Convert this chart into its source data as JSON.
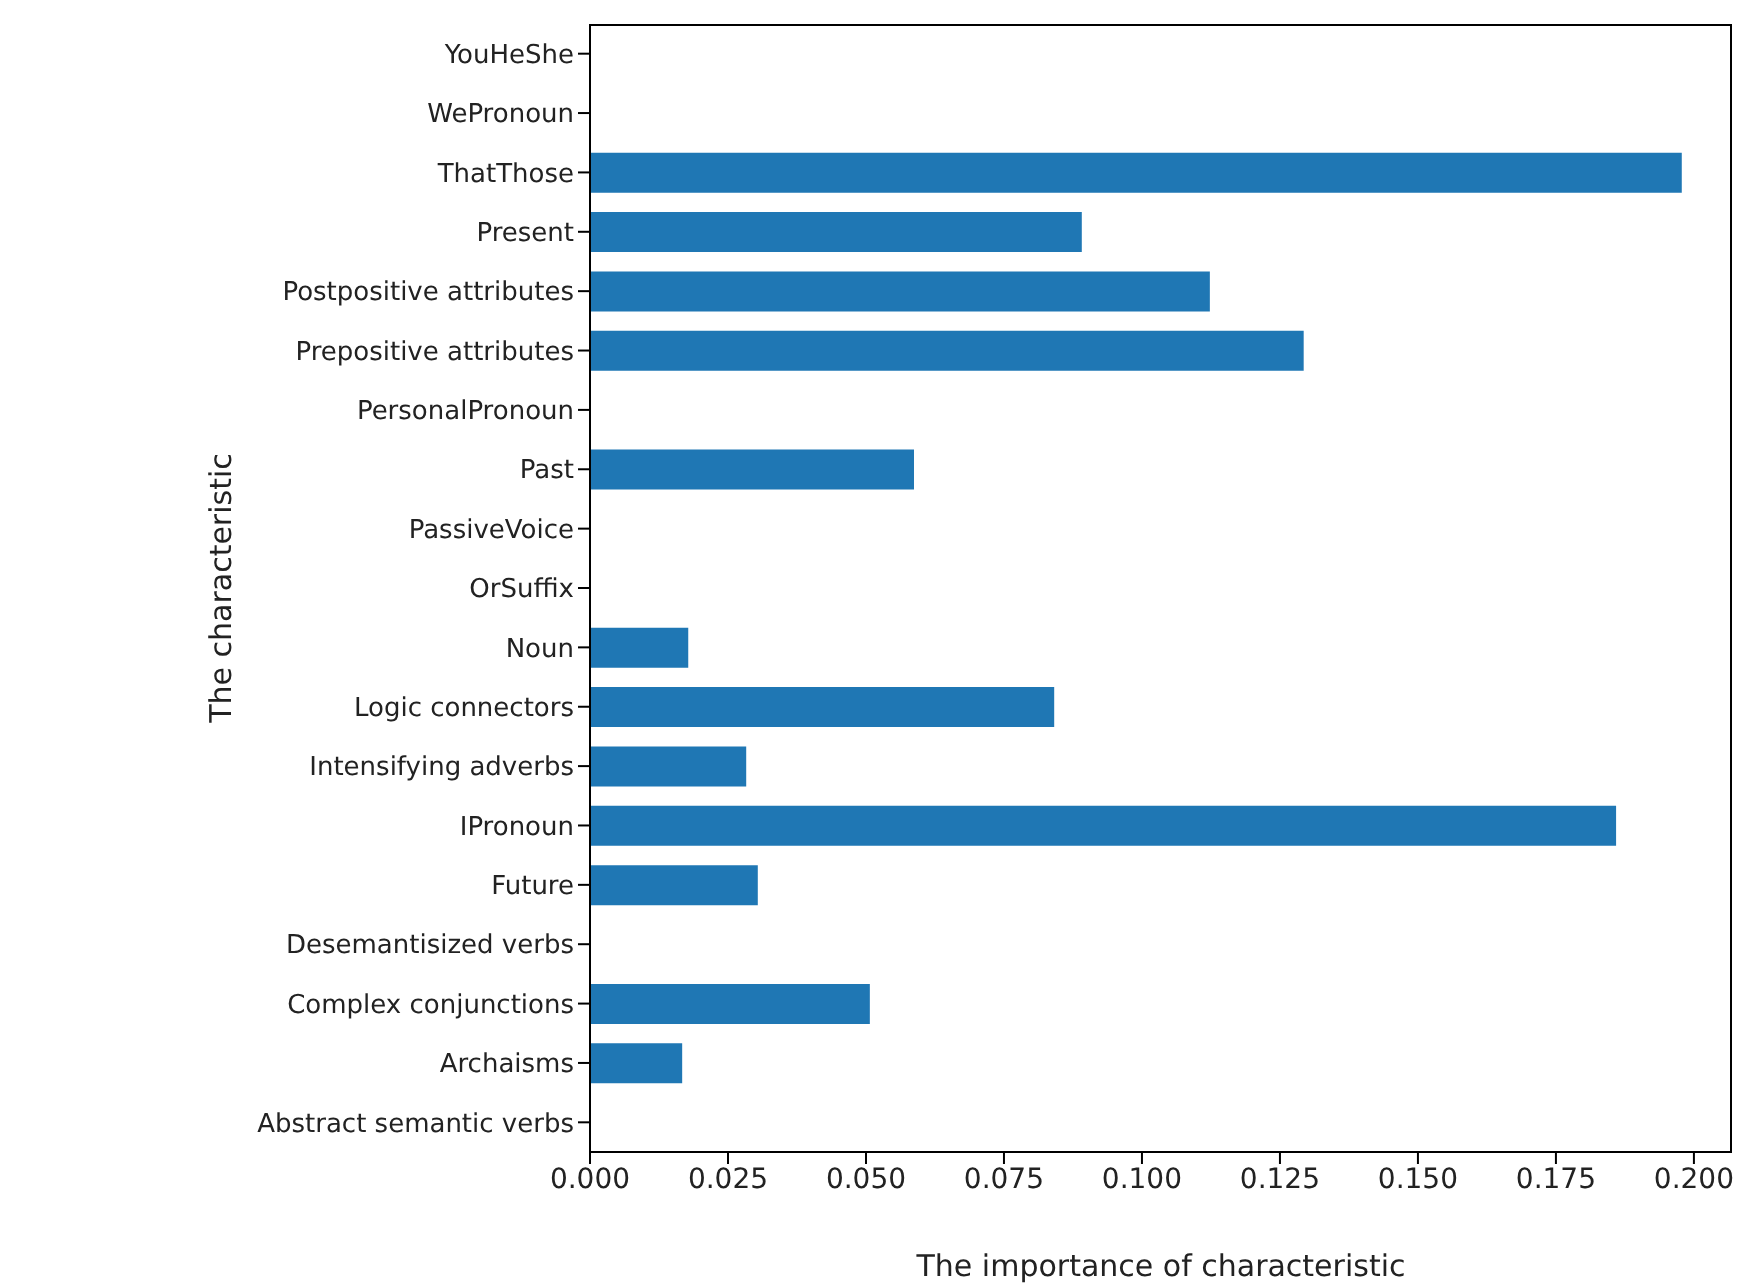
{
  "chart_data": {
    "type": "bar",
    "orientation": "horizontal",
    "xlabel": "The importance of characteristic",
    "ylabel": "The characteristic",
    "categories": [
      "YouHeShe",
      "WePronoun",
      "ThatThose",
      "Present",
      "Postpositive attributes",
      "Prepositive attributes",
      "PersonalPronoun",
      "Past",
      "PassiveVoice",
      "OrSuffix",
      "Noun",
      "Logic connectors",
      "Intensifying adverbs",
      "IPronoun",
      "Future",
      "Desemantisized verbs",
      "Complex conjunctions",
      "Archaisms",
      "Abstract semantic verbs"
    ],
    "values": [
      0,
      0,
      0.1978,
      0.0891,
      0.1123,
      0.1293,
      0,
      0.0587,
      0,
      0,
      0.0178,
      0.0841,
      0.0283,
      0.1859,
      0.0304,
      0,
      0.0507,
      0.0167,
      0
    ],
    "color": "#1f77b4",
    "xlim": [
      0,
      0.2069
    ],
    "xticks": [
      {
        "value": 0,
        "label": "0.000"
      },
      {
        "value": 0.025,
        "label": "0.025"
      },
      {
        "value": 0.05,
        "label": "0.050"
      },
      {
        "value": 0.075,
        "label": "0.075"
      },
      {
        "value": 0.1,
        "label": "0.100"
      },
      {
        "value": 0.125,
        "label": "0.125"
      },
      {
        "value": 0.15,
        "label": "0.150"
      },
      {
        "value": 0.175,
        "label": "0.175"
      },
      {
        "value": 0.2,
        "label": "0.200"
      }
    ],
    "grid": false,
    "legend": false
  }
}
